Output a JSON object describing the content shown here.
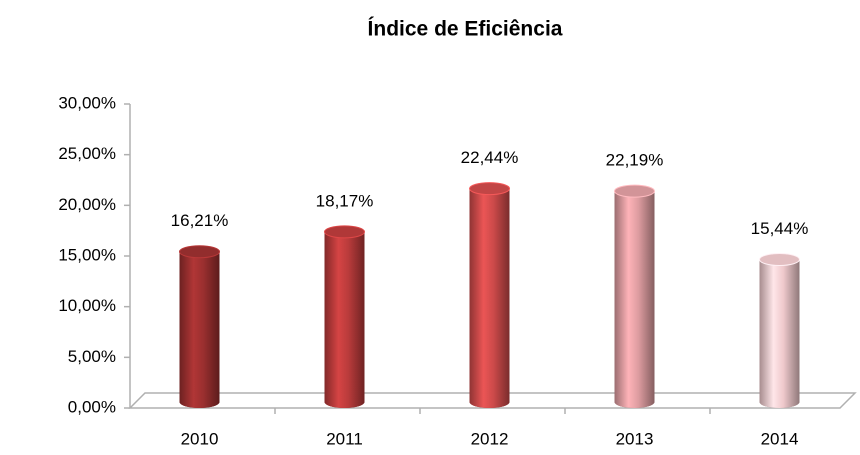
{
  "chart_data": {
    "type": "bar",
    "title": "Índice de Eficiência",
    "categories": [
      "2010",
      "2011",
      "2012",
      "2013",
      "2014"
    ],
    "values": [
      16.21,
      18.17,
      22.44,
      22.19,
      15.44
    ],
    "value_labels": [
      "16,21%",
      "18,17%",
      "22,44%",
      "22,19%",
      "15,44%"
    ],
    "colors": [
      "#9a2f2f",
      "#b93b3b",
      "#cc4a4a",
      "#dd9ca0",
      "#eec8cb"
    ],
    "ylim": [
      0,
      30
    ],
    "yticks": [
      {
        "value": 0,
        "label": "0,00%"
      },
      {
        "value": 5,
        "label": "5,00%"
      },
      {
        "value": 10,
        "label": "10,00%"
      },
      {
        "value": 15,
        "label": "15,00%"
      },
      {
        "value": 20,
        "label": "20,00%"
      },
      {
        "value": 25,
        "label": "25,00%"
      },
      {
        "value": 30,
        "label": "30,00%"
      }
    ],
    "grid": false
  }
}
